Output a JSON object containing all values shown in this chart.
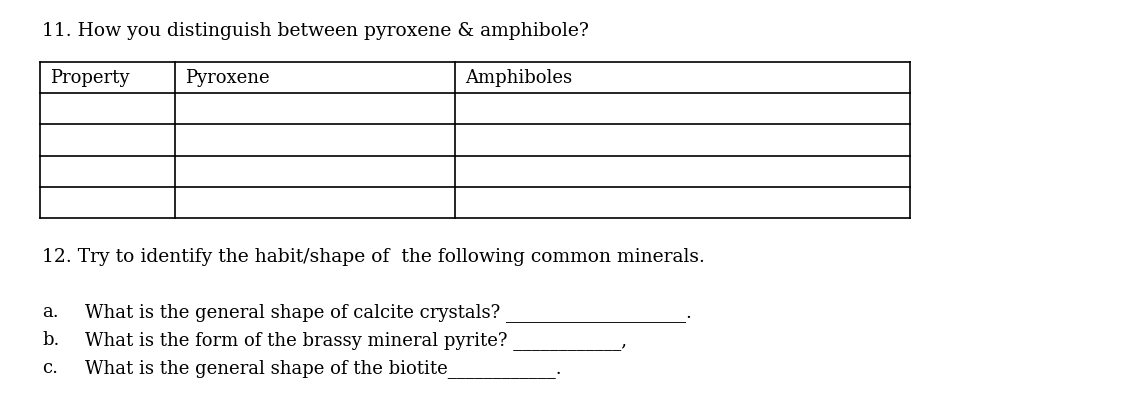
{
  "title11": "11. How you distinguish between pyroxene & amphibole?",
  "title12": "12. Try to identify the habit/shape of  the following common minerals.",
  "table_headers": [
    "Property",
    "Pyroxene",
    "Amphiboles"
  ],
  "num_data_rows": 4,
  "questions": [
    {
      "label": "a.",
      "text": "What is the general shape of calcite crystals? ____________________."
    },
    {
      "label": "b.",
      "text": "What is the form of the brassy mineral pyrite? ____________,"
    },
    {
      "label": "c.",
      "text": "What is the general shape of the biotite____________."
    }
  ],
  "bg_color": "#ffffff",
  "text_color": "#000000",
  "font_size_title": 13.5,
  "font_size_table": 13,
  "font_size_questions": 13
}
